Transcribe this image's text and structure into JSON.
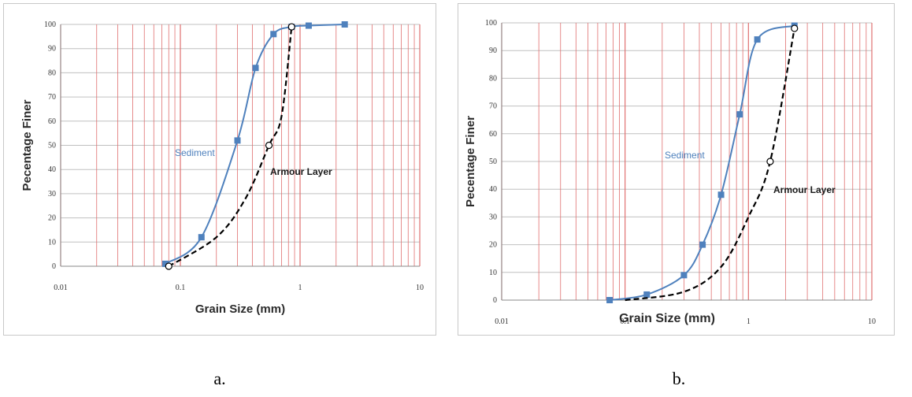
{
  "chart_data": [
    {
      "type": "line",
      "panel": "a",
      "xscale": "log",
      "xlim": [
        0.01,
        10
      ],
      "ylim": [
        0,
        100
      ],
      "yticks": [
        0,
        10,
        20,
        30,
        40,
        50,
        60,
        70,
        80,
        90,
        100
      ],
      "xticks": [
        "0.01",
        "0.1",
        "1",
        "10"
      ],
      "xlabel": "Grain Size (mm)",
      "ylabel": "Pecentage Finer",
      "series": [
        {
          "name": "Sediment",
          "color": "#4f81bd",
          "style": "solid",
          "marker": "filled-square",
          "x": [
            0.075,
            0.15,
            0.3,
            0.425,
            0.6,
            0.85,
            1.18,
            2.36
          ],
          "y": [
            1,
            12,
            52,
            82,
            96,
            99,
            99.5,
            100
          ]
        },
        {
          "name": "Armour Layer",
          "color": "#000000",
          "style": "dashed",
          "marker": "open-circle",
          "x": [
            0.08,
            0.2,
            0.35,
            0.55,
            0.7,
            0.85
          ],
          "y": [
            0,
            12,
            28,
            50,
            62,
            99
          ],
          "marked_x": [
            0.08,
            0.55,
            0.85
          ],
          "marked_y": [
            0,
            50,
            99
          ]
        }
      ]
    },
    {
      "type": "line",
      "panel": "b",
      "xscale": "log",
      "xlim": [
        0.01,
        10
      ],
      "ylim": [
        0,
        100
      ],
      "yticks": [
        0,
        10,
        20,
        30,
        40,
        50,
        60,
        70,
        80,
        90,
        100
      ],
      "xticks": [
        "0.01",
        "0.1",
        "1",
        "10"
      ],
      "xlabel": "Grain Size (mm)",
      "ylabel": "Pecentage Finer",
      "series": [
        {
          "name": "Sediment",
          "color": "#4f81bd",
          "style": "solid",
          "marker": "filled-square",
          "x": [
            0.075,
            0.15,
            0.3,
            0.425,
            0.6,
            0.85,
            1.18,
            2.36
          ],
          "y": [
            0,
            2,
            9,
            20,
            38,
            67,
            94,
            99
          ]
        },
        {
          "name": "Armour Layer",
          "color": "#000000",
          "style": "dashed",
          "marker": "open-circle",
          "x": [
            0.1,
            0.3,
            0.6,
            1.0,
            1.5,
            2.36
          ],
          "y": [
            0,
            3,
            12,
            30,
            50,
            98
          ],
          "marked_x": [
            1.5,
            2.36
          ],
          "marked_y": [
            50,
            98
          ]
        }
      ]
    }
  ],
  "captions": {
    "a": "a.",
    "b": "b."
  },
  "series_labels": {
    "sediment": "Sediment",
    "armour": "Armour Layer"
  },
  "colors": {
    "grid_red": "#e07070",
    "grid_gray": "#c0c0c0",
    "sediment": "#4f81bd",
    "armour": "#000000"
  }
}
